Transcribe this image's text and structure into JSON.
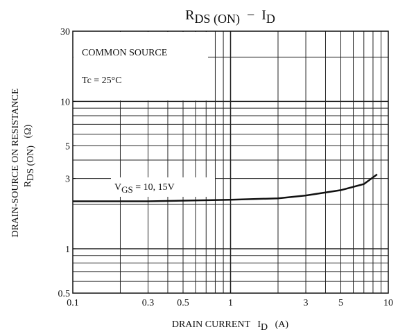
{
  "chart_data": {
    "type": "line",
    "title": [
      {
        "text": "R"
      },
      {
        "text": "DS (ON)",
        "sub": true
      },
      {
        "text": "  −  I"
      },
      {
        "text": "D",
        "sub": true
      }
    ],
    "y_label": [
      [
        {
          "text": "DRAIN-SOURCE ON RESISTANCE"
        }
      ],
      [
        {
          "text": "R"
        },
        {
          "text": "DS (ON)",
          "sub": true
        },
        {
          "text": "   (Ω)"
        }
      ]
    ],
    "x_label": [
      {
        "text": "DRAIN CURRENT   I"
      },
      {
        "text": "D",
        "sub": true
      },
      {
        "text": "   (A)"
      }
    ],
    "annotations": [
      [
        {
          "text": "COMMON SOURCE"
        }
      ],
      [
        {
          "text": "Tc = 25°C"
        }
      ],
      [
        {
          "text": "V"
        },
        {
          "text": "GS",
          "sub": true
        },
        {
          "text": " = 10, 15V"
        }
      ]
    ],
    "x_log": true,
    "y_log": true,
    "xlim": [
      0.1,
      10
    ],
    "ylim": [
      0.5,
      30
    ],
    "xticks": [
      0.1,
      0.3,
      0.5,
      1,
      3,
      5,
      10
    ],
    "yticks": [
      0.5,
      1,
      3,
      5,
      10,
      30
    ],
    "xgrid": [
      0.2,
      0.3,
      0.4,
      0.5,
      0.6,
      0.7,
      0.8,
      0.9,
      1,
      2,
      3,
      4,
      5,
      6,
      7,
      8,
      9
    ],
    "ygrid": [
      0.6,
      0.7,
      0.8,
      0.9,
      1,
      2,
      3,
      4,
      5,
      6,
      7,
      8,
      9,
      10,
      20
    ],
    "series": [
      {
        "color": "#111111",
        "x": [
          0.1,
          0.3,
          1,
          2,
          3,
          5,
          7,
          8.5
        ],
        "values": [
          2.1,
          2.1,
          2.15,
          2.2,
          2.3,
          2.5,
          2.75,
          3.2
        ]
      }
    ]
  }
}
